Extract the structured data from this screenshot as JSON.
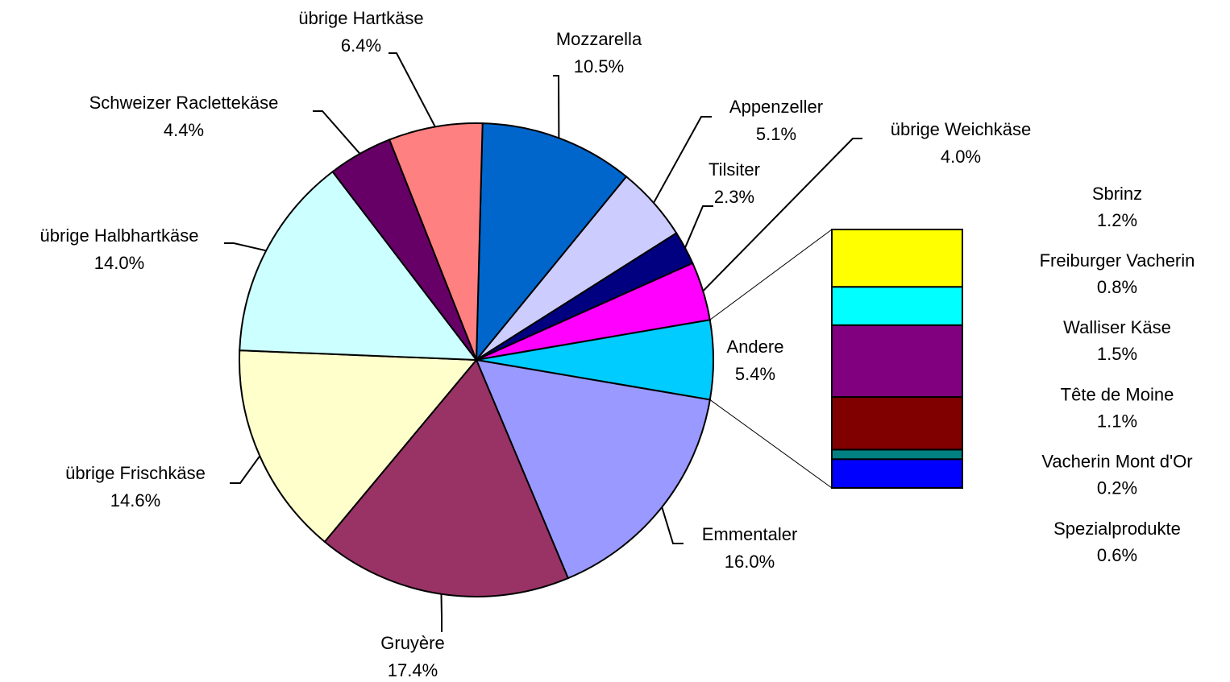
{
  "chart_data": {
    "type": "pie",
    "categories": [
      "Mozzarella",
      "Appenzeller",
      "Tilsiter",
      "übrige Weichkäse",
      "Andere",
      "Emmentaler",
      "Gruyère",
      "übrige Frischkäse",
      "übrige Halbhartkäse",
      "Schweizer Raclettekäse",
      "übrige Hartkäse"
    ],
    "values": [
      10.5,
      5.1,
      2.3,
      4.0,
      5.4,
      16.0,
      17.4,
      14.6,
      14.0,
      4.4,
      6.4
    ],
    "value_labels": [
      "10.5%",
      "5.1%",
      "2.3%",
      "4.0%",
      "5.4%",
      "16.0%",
      "17.4%",
      "14.6%",
      "14.0%",
      "4.4%",
      "6.4%"
    ],
    "colors": [
      "#0066cc",
      "#ccccff",
      "#000080",
      "#ff00ff",
      "#00ccff",
      "#9999ff",
      "#993366",
      "#ffffcc",
      "#ccffff",
      "#660066",
      "#ff8080"
    ],
    "bar_of_pie": {
      "categories": [
        "Sbrinz",
        "Freiburger Vacherin",
        "Walliser Käse",
        "Tête de Moine",
        "Vacherin Mont d'Or",
        "Spezialprodukte"
      ],
      "values": [
        1.2,
        0.8,
        1.5,
        1.1,
        0.2,
        0.6
      ],
      "value_labels": [
        "1.2%",
        "0.8%",
        "1.5%",
        "1.1%",
        "0.2%",
        "0.6%"
      ],
      "colors": [
        "#ffff00",
        "#00ffff",
        "#800080",
        "#800000",
        "#008080",
        "#0000ff"
      ]
    }
  }
}
